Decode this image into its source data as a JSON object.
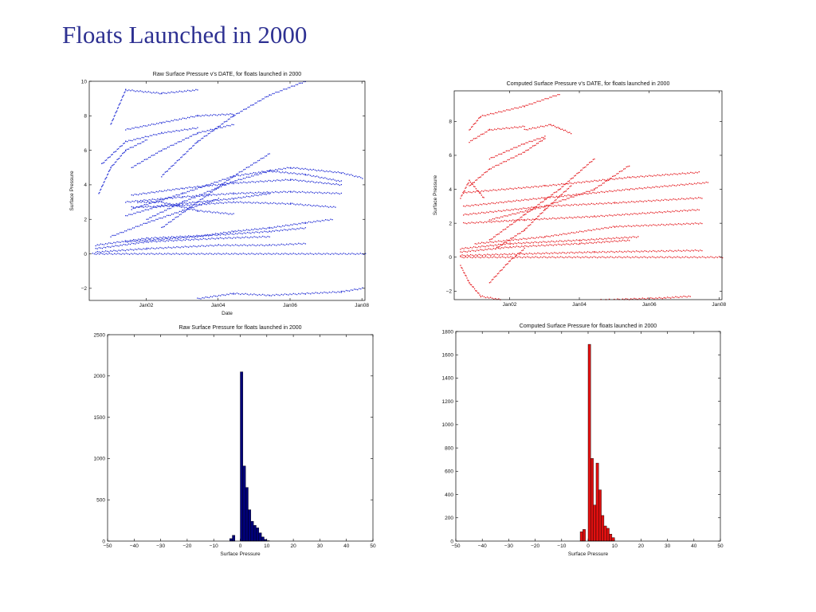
{
  "slide": {
    "title": "Floats Launched in 2000"
  },
  "chart_data": [
    {
      "id": "raw-scatter",
      "type": "scatter",
      "title": "Raw Surface Pressure v's DATE, for floats launched in 2000",
      "xlabel": "Date",
      "ylabel": "Surface Pressure",
      "x_type": "date",
      "xlim": [
        "2000-06-01",
        "2008-02-01"
      ],
      "ylim": [
        -2.7,
        10
      ],
      "xticks": [
        {
          "value": "2002-01-01",
          "label": "Jan02"
        },
        {
          "value": "2004-01-01",
          "label": "Jan04"
        },
        {
          "value": "2006-01-01",
          "label": "Jan06"
        },
        {
          "value": "2008-01-01",
          "label": "Jan08"
        }
      ],
      "yticks": [
        -2,
        0,
        2,
        4,
        6,
        8,
        10
      ],
      "color": "#1f2bd4",
      "marker": "dots",
      "series": [
        {
          "x": [
            "2000-07-01",
            "2008-02-01"
          ],
          "y": [
            0.0,
            0.0
          ]
        },
        {
          "x": [
            "2000-08-01",
            "2002-01-01",
            "2004-01-01",
            "2005-06-01",
            "2006-06-01"
          ],
          "y": [
            0.1,
            0.3,
            0.5,
            0.5,
            0.6
          ]
        },
        {
          "x": [
            "2000-08-01",
            "2002-01-01",
            "2004-01-01",
            "2005-06-01"
          ],
          "y": [
            0.3,
            0.7,
            0.9,
            1.0
          ]
        },
        {
          "x": [
            "2000-08-01",
            "2002-01-01",
            "2004-01-01",
            "2005-06-01",
            "2006-06-01"
          ],
          "y": [
            0.5,
            0.9,
            1.1,
            1.3,
            1.5
          ]
        },
        {
          "x": [
            "2001-06-01",
            "2003-06-01",
            "2004-06-01",
            "2005-06-01",
            "2006-06-01",
            "2007-03-01"
          ],
          "y": [
            0.7,
            1.0,
            1.3,
            1.5,
            1.8,
            2.0
          ]
        },
        {
          "x": [
            "2001-08-01",
            "2003-01-01",
            "2004-06-01",
            "2006-01-01",
            "2007-04-01"
          ],
          "y": [
            2.7,
            2.8,
            3.0,
            2.9,
            2.7
          ]
        },
        {
          "x": [
            "2001-06-01",
            "2003-01-01",
            "2004-06-01",
            "2006-01-01",
            "2007-06-01"
          ],
          "y": [
            3.0,
            3.3,
            3.5,
            3.6,
            3.5
          ]
        },
        {
          "x": [
            "2001-08-01",
            "2003-01-01",
            "2004-06-01",
            "2006-01-01",
            "2007-06-01"
          ],
          "y": [
            3.4,
            3.8,
            4.1,
            4.3,
            4.0
          ]
        },
        {
          "x": [
            "2001-08-01",
            "2003-01-01",
            "2004-06-01",
            "2006-01-01",
            "2007-06-01",
            "2008-01-01"
          ],
          "y": [
            2.6,
            3.5,
            4.5,
            5.0,
            4.7,
            4.4
          ]
        },
        {
          "x": [
            "2002-01-01",
            "2003-01-01",
            "2004-06-01",
            "2005-06-01",
            "2006-06-01",
            "2007-06-01"
          ],
          "y": [
            2.0,
            3.0,
            4.2,
            4.8,
            4.6,
            4.2
          ]
        },
        {
          "x": [
            "2002-06-01",
            "2003-06-01",
            "2004-06-01",
            "2005-06-01"
          ],
          "y": [
            1.5,
            3.0,
            4.5,
            5.8
          ]
        },
        {
          "x": [
            "2001-01-01",
            "2002-01-01",
            "2003-01-01",
            "2004-01-01"
          ],
          "y": [
            1.0,
            1.8,
            2.5,
            3.2
          ]
        },
        {
          "x": [
            "2001-06-01",
            "2002-06-01",
            "2003-06-01",
            "2004-06-01",
            "2005-06-01"
          ],
          "y": [
            2.2,
            2.8,
            3.0,
            3.2,
            3.5
          ]
        },
        {
          "x": [
            "2001-10-01",
            "2002-06-01",
            "2003-06-01",
            "2004-06-01"
          ],
          "y": [
            3.0,
            3.0,
            2.5,
            2.3
          ]
        },
        {
          "x": [
            "2000-09-01",
            "2001-01-01",
            "2001-06-01",
            "2002-01-01"
          ],
          "y": [
            3.5,
            5.0,
            6.0,
            6.6
          ]
        },
        {
          "x": [
            "2000-10-01",
            "2001-06-01",
            "2002-06-01",
            "2003-06-01"
          ],
          "y": [
            5.2,
            6.5,
            7.0,
            7.3
          ]
        },
        {
          "x": [
            "2001-06-01",
            "2002-06-01",
            "2003-06-01",
            "2004-06-01"
          ],
          "y": [
            7.2,
            7.6,
            8.0,
            8.1
          ]
        },
        {
          "x": [
            "2001-01-01",
            "2001-06-01",
            "2002-06-01",
            "2003-06-01"
          ],
          "y": [
            7.5,
            9.5,
            9.3,
            9.5
          ]
        },
        {
          "x": [
            "2002-06-01",
            "2003-06-01",
            "2004-06-01",
            "2005-06-01",
            "2006-06-01"
          ],
          "y": [
            4.5,
            6.5,
            8.0,
            9.2,
            10.0
          ]
        },
        {
          "x": [
            "2001-08-01",
            "2002-06-01",
            "2003-06-01",
            "2004-06-01"
          ],
          "y": [
            5.0,
            6.0,
            7.0,
            7.5
          ]
        },
        {
          "x": [
            "2003-06-01",
            "2004-06-01",
            "2005-06-01",
            "2006-06-01",
            "2007-06-01",
            "2008-01-01"
          ],
          "y": [
            -2.6,
            -2.3,
            -2.4,
            -2.3,
            -2.2,
            -2.0
          ]
        }
      ]
    },
    {
      "id": "computed-scatter",
      "type": "scatter",
      "title": "Computed Surface Pressure v's DATE, for floats launched in 2000",
      "xlabel": "",
      "ylabel": "Surface Pressure",
      "x_type": "date",
      "xlim": [
        "2000-06-01",
        "2008-02-01"
      ],
      "ylim": [
        -2.5,
        9.8
      ],
      "xticks": [
        {
          "value": "2002-01-01",
          "label": "Jan02"
        },
        {
          "value": "2004-01-01",
          "label": "Jan04"
        },
        {
          "value": "2006-01-01",
          "label": "Jan06"
        },
        {
          "value": "2008-01-01",
          "label": "Jan08"
        }
      ],
      "yticks": [
        -2,
        0,
        2,
        4,
        6,
        8
      ],
      "color": "#e4171c",
      "marker": "dots",
      "series": [
        {
          "x": [
            "2000-08-01",
            "2008-02-01"
          ],
          "y": [
            0.0,
            0.0
          ]
        },
        {
          "x": [
            "2000-08-01",
            "2002-06-01",
            "2004-06-01",
            "2007-07-01"
          ],
          "y": [
            0.1,
            0.2,
            0.3,
            0.4
          ]
        },
        {
          "x": [
            "2000-08-01",
            "2002-01-01",
            "2004-01-01",
            "2005-06-01"
          ],
          "y": [
            0.3,
            0.6,
            0.8,
            1.0
          ]
        },
        {
          "x": [
            "2000-08-01",
            "2002-01-01",
            "2004-01-01",
            "2005-09-01"
          ],
          "y": [
            0.5,
            0.8,
            1.0,
            1.2
          ]
        },
        {
          "x": [
            "2001-01-01",
            "2003-01-01",
            "2005-01-01",
            "2007-07-01"
          ],
          "y": [
            0.8,
            1.2,
            1.8,
            2.0
          ]
        },
        {
          "x": [
            "2000-09-01",
            "2002-06-01",
            "2004-06-01",
            "2007-06-01"
          ],
          "y": [
            2.0,
            2.2,
            2.4,
            2.8
          ]
        },
        {
          "x": [
            "2000-09-01",
            "2003-01-01",
            "2005-01-01",
            "2007-07-01"
          ],
          "y": [
            2.5,
            3.0,
            3.2,
            3.5
          ]
        },
        {
          "x": [
            "2000-09-01",
            "2003-01-01",
            "2005-06-01",
            "2007-09-01"
          ],
          "y": [
            3.0,
            3.5,
            4.0,
            4.4
          ]
        },
        {
          "x": [
            "2000-09-01",
            "2003-01-01",
            "2005-06-01",
            "2007-06-01"
          ],
          "y": [
            3.8,
            4.2,
            4.7,
            5.0
          ]
        },
        {
          "x": [
            "2001-06-01",
            "2003-01-01",
            "2004-06-01",
            "2005-06-01"
          ],
          "y": [
            2.2,
            3.0,
            4.0,
            5.4
          ]
        },
        {
          "x": [
            "2001-06-01",
            "2002-06-01",
            "2003-06-01",
            "2004-06-01"
          ],
          "y": [
            1.0,
            2.5,
            4.0,
            5.8
          ]
        },
        {
          "x": [
            "2001-08-01",
            "2002-06-01",
            "2003-01-01",
            "2003-10-01"
          ],
          "y": [
            0.5,
            1.6,
            2.8,
            4.2
          ]
        },
        {
          "x": [
            "2000-11-01",
            "2001-06-01",
            "2002-06-01",
            "2003-01-01"
          ],
          "y": [
            4.2,
            5.2,
            6.2,
            7.0
          ]
        },
        {
          "x": [
            "2000-11-01",
            "2001-06-01",
            "2002-06-01"
          ],
          "y": [
            6.8,
            7.5,
            7.7
          ]
        },
        {
          "x": [
            "2000-11-01",
            "2001-03-01",
            "2002-06-01",
            "2003-06-01"
          ],
          "y": [
            7.5,
            8.3,
            8.9,
            9.6
          ]
        },
        {
          "x": [
            "2002-06-01",
            "2003-03-01",
            "2003-06-01",
            "2003-10-01"
          ],
          "y": [
            7.5,
            7.8,
            7.6,
            7.3
          ]
        },
        {
          "x": [
            "2001-06-01",
            "2002-06-01",
            "2003-01-01"
          ],
          "y": [
            5.8,
            6.7,
            7.1
          ]
        },
        {
          "x": [
            "2000-08-01",
            "2000-11-01",
            "2001-03-01",
            "2002-01-01",
            "2003-06-01",
            "2006-06-01",
            "2007-03-01"
          ],
          "y": [
            -0.5,
            -1.5,
            -2.3,
            -2.6,
            -2.6,
            -2.4,
            -2.3
          ]
        },
        {
          "x": [
            "2000-08-01",
            "2000-11-01",
            "2001-04-01"
          ],
          "y": [
            3.5,
            4.5,
            3.5
          ]
        },
        {
          "x": [
            "2001-06-01",
            "2002-01-01",
            "2002-06-01"
          ],
          "y": [
            -1.5,
            -0.2,
            0.5
          ]
        }
      ]
    },
    {
      "id": "raw-hist",
      "type": "bar",
      "title": "Raw Surface Pressure for floats launched in 2000",
      "xlabel": "Surface Pressure",
      "ylabel": "",
      "xlim": [
        -50,
        50
      ],
      "ylim": [
        0,
        2500
      ],
      "xticks": [
        -50,
        -40,
        -30,
        -20,
        -10,
        0,
        10,
        20,
        30,
        40,
        50
      ],
      "yticks": [
        0,
        500,
        1000,
        1500,
        2000,
        2500
      ],
      "bin_width": 1,
      "bin_starts": [
        -4,
        -3,
        -2,
        -1,
        0,
        1,
        2,
        3,
        4,
        5,
        6,
        7,
        8,
        9,
        10
      ],
      "values": [
        30,
        70,
        0,
        0,
        2050,
        910,
        650,
        380,
        240,
        190,
        160,
        100,
        50,
        20,
        5
      ],
      "color": "#00007a"
    },
    {
      "id": "computed-hist",
      "type": "bar",
      "title": "Computed Surface Pressure for floats launched in 2000",
      "xlabel": "Surface Pressure",
      "ylabel": "",
      "xlim": [
        -50,
        50
      ],
      "ylim": [
        0,
        1800
      ],
      "xticks": [
        -50,
        -40,
        -30,
        -20,
        -10,
        0,
        10,
        20,
        30,
        40,
        50
      ],
      "yticks": [
        0,
        200,
        400,
        600,
        800,
        1000,
        1200,
        1400,
        1600,
        1800
      ],
      "bin_width": 1,
      "bin_starts": [
        -3,
        -2,
        -1,
        0,
        1,
        2,
        3,
        4,
        5,
        6,
        7,
        8,
        9
      ],
      "values": [
        80,
        100,
        0,
        1690,
        710,
        310,
        670,
        440,
        220,
        130,
        110,
        60,
        30
      ],
      "color": "#e01010"
    }
  ]
}
